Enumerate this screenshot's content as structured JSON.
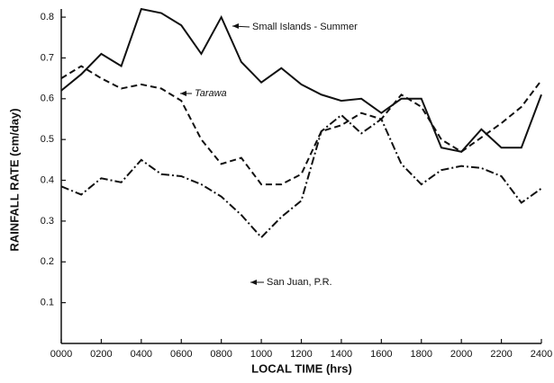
{
  "chart_data": {
    "type": "line",
    "xlabel": "LOCAL TIME (hrs)",
    "ylabel": "RAINFALL RATE (cm/day)",
    "x": [
      0,
      100,
      200,
      300,
      400,
      500,
      600,
      700,
      800,
      900,
      1000,
      1100,
      1200,
      1300,
      1400,
      1500,
      1600,
      1700,
      1800,
      1900,
      2000,
      2100,
      2200,
      2300,
      2400
    ],
    "series": [
      {
        "name": "Small Islands - Summer",
        "color": "#111111",
        "linestyle": "solid",
        "values": [
          0.62,
          0.66,
          0.71,
          0.68,
          0.82,
          0.81,
          0.78,
          0.71,
          0.8,
          0.69,
          0.64,
          0.675,
          0.635,
          0.61,
          0.595,
          0.6,
          0.565,
          0.6,
          0.6,
          0.48,
          0.47,
          0.525,
          0.48,
          0.48,
          0.61
        ]
      },
      {
        "name": "Tarawa",
        "color": "#111111",
        "linestyle": "dashed",
        "values": [
          0.65,
          0.68,
          0.65,
          0.625,
          0.635,
          0.625,
          0.595,
          0.5,
          0.44,
          0.455,
          0.39,
          0.39,
          0.415,
          0.52,
          0.535,
          0.565,
          0.55,
          0.61,
          0.58,
          0.5,
          0.47,
          0.505,
          0.54,
          0.58,
          0.645
        ]
      },
      {
        "name": "San Juan, P.R.",
        "color": "#111111",
        "linestyle": "dashdot",
        "values": [
          0.385,
          0.365,
          0.405,
          0.395,
          0.45,
          0.415,
          0.41,
          0.39,
          0.36,
          0.315,
          0.26,
          0.31,
          0.35,
          0.52,
          0.56,
          0.515,
          0.55,
          0.44,
          0.39,
          0.425,
          0.435,
          0.43,
          0.41,
          0.345,
          0.38
        ]
      }
    ],
    "xlim": [
      0,
      2400
    ],
    "xticks": [
      {
        "value": 0,
        "label": "0000"
      },
      {
        "value": 200,
        "label": "0200"
      },
      {
        "value": 400,
        "label": "0400"
      },
      {
        "value": 600,
        "label": "0600"
      },
      {
        "value": 800,
        "label": "0800"
      },
      {
        "value": 1000,
        "label": "1000"
      },
      {
        "value": 1200,
        "label": "1200"
      },
      {
        "value": 1400,
        "label": "1400"
      },
      {
        "value": 1600,
        "label": "1600"
      },
      {
        "value": 1800,
        "label": "1800"
      },
      {
        "value": 2000,
        "label": "2000"
      },
      {
        "value": 2200,
        "label": "2200"
      },
      {
        "value": 2400,
        "label": "2400"
      }
    ],
    "ylim": [
      0,
      0.82
    ],
    "yticks": [
      0.1,
      0.2,
      0.3,
      0.4,
      0.5,
      0.6,
      0.7,
      0.8
    ],
    "grid": false
  }
}
